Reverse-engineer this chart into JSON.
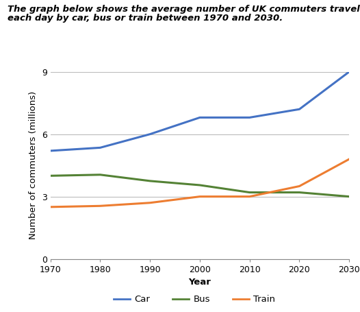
{
  "title_line1": "The graph below shows the average number of UK commuters travelling",
  "title_line2": "each day by car, bus or train between 1970 and 2030.",
  "xlabel": "Year",
  "ylabel": "Number of commuters (millions)",
  "years": [
    1970,
    1980,
    1990,
    2000,
    2010,
    2020,
    2030
  ],
  "car": [
    5.2,
    5.35,
    6.0,
    6.8,
    6.8,
    7.2,
    9.0
  ],
  "bus": [
    4.0,
    4.05,
    3.75,
    3.55,
    3.2,
    3.2,
    3.0
  ],
  "train": [
    2.5,
    2.55,
    2.7,
    3.0,
    3.0,
    3.5,
    4.8
  ],
  "car_color": "#4472C4",
  "bus_color": "#548235",
  "train_color": "#ED7D31",
  "ylim": [
    0,
    9
  ],
  "yticks": [
    0,
    3,
    6,
    9
  ],
  "grid_color": "#bbbbbb",
  "title_fontsize": 9.5,
  "axis_label_fontsize": 9.5,
  "tick_fontsize": 9,
  "legend_fontsize": 9.5,
  "line_width": 2.2
}
